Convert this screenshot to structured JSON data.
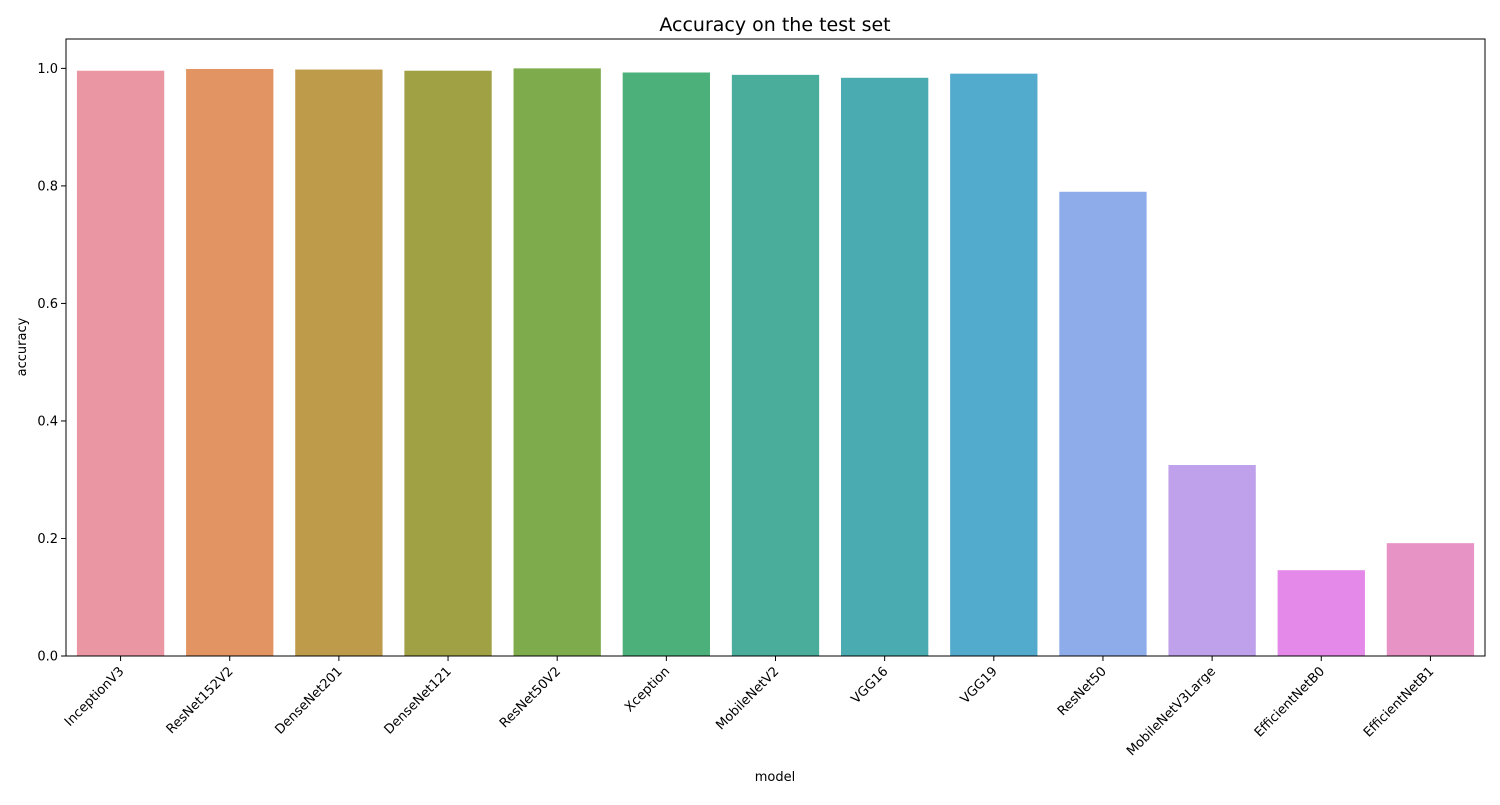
{
  "chart_data": {
    "type": "bar",
    "title": "Accuracy on the test set",
    "xlabel": "model",
    "ylabel": "accuracy",
    "ylim": [
      0.0,
      1.05
    ],
    "yticks": [
      "0.0",
      "0.2",
      "0.4",
      "0.6",
      "0.8",
      "1.0"
    ],
    "ytick_values": [
      0.0,
      0.2,
      0.4,
      0.6,
      0.8,
      1.0
    ],
    "grid": false,
    "categories": [
      "InceptionV3",
      "ResNet152V2",
      "DenseNet201",
      "DenseNet121",
      "ResNet50V2",
      "Xception",
      "MobileNetV2",
      "VGG16",
      "VGG19",
      "ResNet50",
      "MobileNetV3Large",
      "EfficientNetB0",
      "EfficientNetB1"
    ],
    "values": [
      0.996,
      0.999,
      0.998,
      0.996,
      1.0,
      0.993,
      0.989,
      0.984,
      0.991,
      0.79,
      0.325,
      0.146,
      0.192
    ],
    "colors": [
      "#ea96a3",
      "#e29563",
      "#bd9b4a",
      "#a0a045",
      "#7eab4b",
      "#4bb079",
      "#4aad9c",
      "#4aabb1",
      "#52aacd",
      "#8facea",
      "#bea1ea",
      "#e489e9",
      "#e793c6"
    ]
  }
}
